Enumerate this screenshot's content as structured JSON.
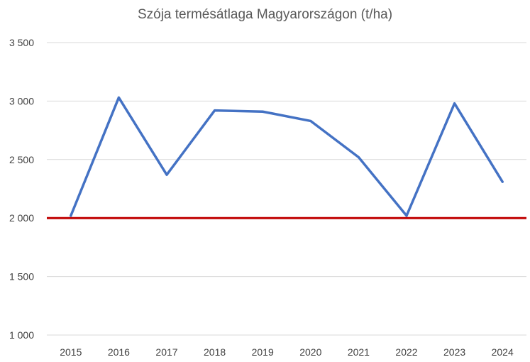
{
  "chart_data": {
    "type": "line",
    "title": "Szója termésátlaga Magyarországon (t/ha)",
    "categories": [
      "2015",
      "2016",
      "2017",
      "2018",
      "2019",
      "2020",
      "2021",
      "2022",
      "2023",
      "2024"
    ],
    "series": [
      {
        "values": [
          2020,
          3030,
          2370,
          2920,
          2910,
          2830,
          2520,
          2020,
          2980,
          2310
        ],
        "color": "#4472C4"
      }
    ],
    "reference_line": {
      "value": 2000,
      "color": "#C00000"
    },
    "ylim": [
      1000,
      3500
    ],
    "yticks": [
      1000,
      1500,
      2000,
      2500,
      3000,
      3500
    ],
    "ytick_labels": [
      "1 000",
      "1 500",
      "2 000",
      "2 500",
      "3 000",
      "3 500"
    ],
    "xlabel": "",
    "ylabel": "",
    "grid": true,
    "gridline_color": "#D9D9D9"
  }
}
